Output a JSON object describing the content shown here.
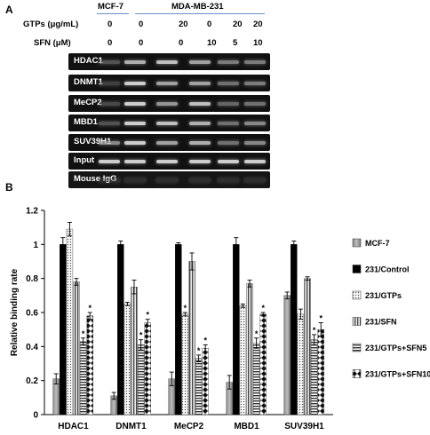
{
  "panel_a": {
    "letter": "A",
    "cell_line_mcf7": "MCF-7",
    "cell_line_mda": "MDA-MB-231",
    "gtps_label": "GTPs (μg/mL)",
    "sfn_label": "SFN  (μM)",
    "gtps_values": [
      "0",
      "0",
      "20",
      "0",
      "20",
      "20"
    ],
    "sfn_values": [
      "0",
      "0",
      "0",
      "10",
      "5",
      "10"
    ],
    "gel_rows": [
      {
        "label": "HDAC1",
        "intensity": [
          0.35,
          0.75,
          0.8,
          0.7,
          0.55,
          0.55
        ]
      },
      {
        "label": "DNMT1",
        "intensity": [
          0.25,
          0.85,
          0.7,
          0.7,
          0.5,
          0.55
        ]
      },
      {
        "label": "MeCP2",
        "intensity": [
          0.3,
          0.85,
          0.65,
          0.8,
          0.45,
          0.5
        ]
      },
      {
        "label": "MBD1",
        "intensity": [
          0.35,
          0.85,
          0.8,
          0.75,
          0.5,
          0.6
        ]
      },
      {
        "label": "SUV39H1",
        "intensity": [
          0.6,
          0.85,
          0.7,
          0.75,
          0.5,
          0.6
        ]
      },
      {
        "label": "Input",
        "intensity": [
          0.85,
          0.85,
          0.85,
          0.85,
          0.85,
          0.85
        ]
      },
      {
        "label": "Mouse IgG",
        "intensity": [
          0.1,
          0.1,
          0.1,
          0.1,
          0.1,
          0.1
        ]
      }
    ]
  },
  "chart_data": {
    "type": "bar",
    "panel_letter": "B",
    "ylabel": "Relative binding rate",
    "ylim": [
      0,
      1.2
    ],
    "yticks": [
      "0",
      "0.2",
      "0.4",
      "0.6",
      "0.8",
      "1",
      "1.2"
    ],
    "categories": [
      "HDAC1",
      "DNMT1",
      "MeCP2",
      "MBD1",
      "SUV39H1"
    ],
    "legend_position": "right",
    "series": [
      {
        "name": "MCF-7",
        "values": [
          0.21,
          0.11,
          0.21,
          0.19,
          0.7
        ],
        "errors": [
          0.03,
          0.02,
          0.04,
          0.04,
          0.02
        ],
        "pattern": "gray"
      },
      {
        "name": "231/Control",
        "values": [
          1.0,
          1.0,
          1.0,
          1.0,
          1.0
        ],
        "errors": [
          0.04,
          0.02,
          0.01,
          0.04,
          0.02
        ],
        "pattern": "black"
      },
      {
        "name": "231/GTPs",
        "values": [
          1.09,
          0.65,
          0.59,
          0.64,
          0.59
        ],
        "errors": [
          0.04,
          0.01,
          0.01,
          0.01,
          0.03
        ],
        "pattern": "dots"
      },
      {
        "name": "231/SFN",
        "values": [
          0.78,
          0.75,
          0.9,
          0.77,
          0.8
        ],
        "errors": [
          0.02,
          0.04,
          0.05,
          0.02,
          0.01
        ],
        "pattern": "vlines"
      },
      {
        "name": "231/GTPs+SFN5",
        "values": [
          0.43,
          0.41,
          0.33,
          0.42,
          0.44
        ],
        "errors": [
          0.02,
          0.03,
          0.02,
          0.03,
          0.03
        ],
        "pattern": "hlines"
      },
      {
        "name": "231/GTPs+SFN10",
        "values": [
          0.58,
          0.54,
          0.39,
          0.59,
          0.5
        ],
        "errors": [
          0.02,
          0.02,
          0.02,
          0.01,
          0.04
        ],
        "pattern": "diamonds"
      }
    ],
    "significance_marker": "*",
    "significant_series": [
      "231/GTPs",
      "231/GTPs+SFN5",
      "231/GTPs+SFN10"
    ],
    "significant_points": [
      {
        "category": "HDAC1",
        "series": "231/GTPs+SFN5"
      },
      {
        "category": "HDAC1",
        "series": "231/GTPs+SFN10"
      },
      {
        "category": "DNMT1",
        "series": "231/GTPs+SFN5"
      },
      {
        "category": "DNMT1",
        "series": "231/GTPs+SFN10"
      },
      {
        "category": "MeCP2",
        "series": "231/GTPs"
      },
      {
        "category": "MeCP2",
        "series": "231/GTPs+SFN5"
      },
      {
        "category": "MeCP2",
        "series": "231/GTPs+SFN10"
      },
      {
        "category": "MBD1",
        "series": "231/GTPs+SFN5"
      },
      {
        "category": "MBD1",
        "series": "231/GTPs+SFN10"
      },
      {
        "category": "SUV39H1",
        "series": "231/GTPs+SFN5"
      },
      {
        "category": "SUV39H1",
        "series": "231/GTPs+SFN10"
      }
    ]
  }
}
